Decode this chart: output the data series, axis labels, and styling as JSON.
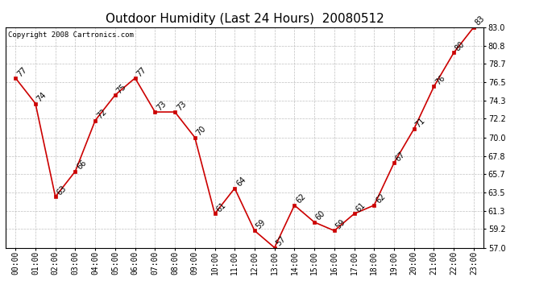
{
  "title": "Outdoor Humidity (Last 24 Hours)  20080512",
  "copyright": "Copyright 2008 Cartronics.com",
  "hours": [
    "00:00",
    "01:00",
    "02:00",
    "03:00",
    "04:00",
    "05:00",
    "06:00",
    "07:00",
    "08:00",
    "09:00",
    "10:00",
    "11:00",
    "12:00",
    "13:00",
    "14:00",
    "15:00",
    "16:00",
    "17:00",
    "18:00",
    "19:00",
    "20:00",
    "21:00",
    "22:00",
    "23:00"
  ],
  "values": [
    77,
    74,
    63,
    66,
    72,
    75,
    77,
    73,
    73,
    70,
    61,
    64,
    59,
    57,
    62,
    60,
    59,
    61,
    62,
    67,
    71,
    76,
    80,
    83
  ],
  "line_color": "#cc0000",
  "marker_color": "#cc0000",
  "bg_color": "#ffffff",
  "plot_bg_color": "#ffffff",
  "grid_color": "#b0b0b0",
  "ylim_min": 57.0,
  "ylim_max": 83.0,
  "yticks": [
    57.0,
    59.2,
    61.3,
    63.5,
    65.7,
    67.8,
    70.0,
    72.2,
    74.3,
    76.5,
    78.7,
    80.8,
    83.0
  ],
  "title_fontsize": 11,
  "label_fontsize": 7,
  "tick_fontsize": 7,
  "copyright_fontsize": 6.5
}
